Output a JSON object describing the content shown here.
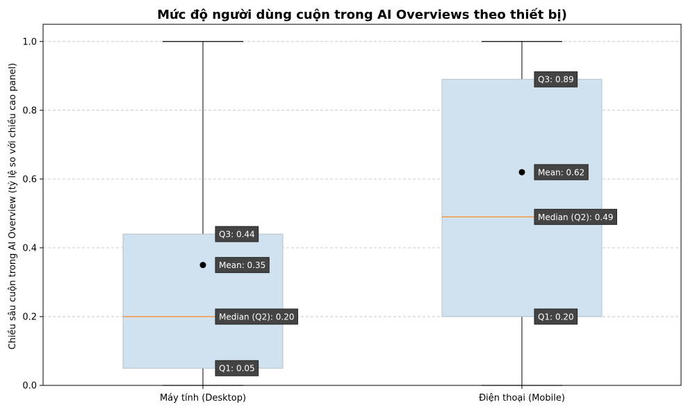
{
  "chart_data": {
    "type": "box",
    "title": "Mức độ người dùng cuộn trong AI Overviews theo thiết bị)",
    "xlabel": "",
    "ylabel": "Chiều sâu cuộn trong AI Overview (tỷ lệ so với chiều cao panel)",
    "ylim": [
      0,
      1.05
    ],
    "yticks": [
      0.0,
      0.2,
      0.4,
      0.6,
      0.8,
      1.0
    ],
    "ytick_labels": [
      "0.0",
      "0.2",
      "0.4",
      "0.6",
      "0.8",
      "1.0"
    ],
    "grid": "y, dashed",
    "categories": [
      "Máy tính (Desktop)",
      "Điện thoại (Mobile)"
    ],
    "boxes": [
      {
        "category": "Máy tính (Desktop)",
        "whisker_low": 0.0,
        "q1": 0.05,
        "median": 0.2,
        "q3": 0.44,
        "whisker_high": 1.0,
        "mean": 0.35,
        "labels": {
          "q3": "Q3: 0.44",
          "mean": "Mean: 0.35",
          "median": "Median (Q2): 0.20",
          "q1": "Q1: 0.05"
        }
      },
      {
        "category": "Điện thoại (Mobile)",
        "whisker_low": 0.0,
        "q1": 0.2,
        "median": 0.49,
        "q3": 0.89,
        "whisker_high": 1.0,
        "mean": 0.62,
        "labels": {
          "q3": "Q3: 0.89",
          "mean": "Mean: 0.62",
          "median": "Median (Q2): 0.49",
          "q1": "Q1: 0.20"
        }
      }
    ],
    "colors": {
      "box_fill": "#d0e2ef",
      "box_edge": "#b4c0c8",
      "median_line": "#ff7f0e",
      "whisker": "#000000",
      "mean_marker": "#000000",
      "grid": "#bbbbbb",
      "annotation_bg": "#444444"
    }
  }
}
